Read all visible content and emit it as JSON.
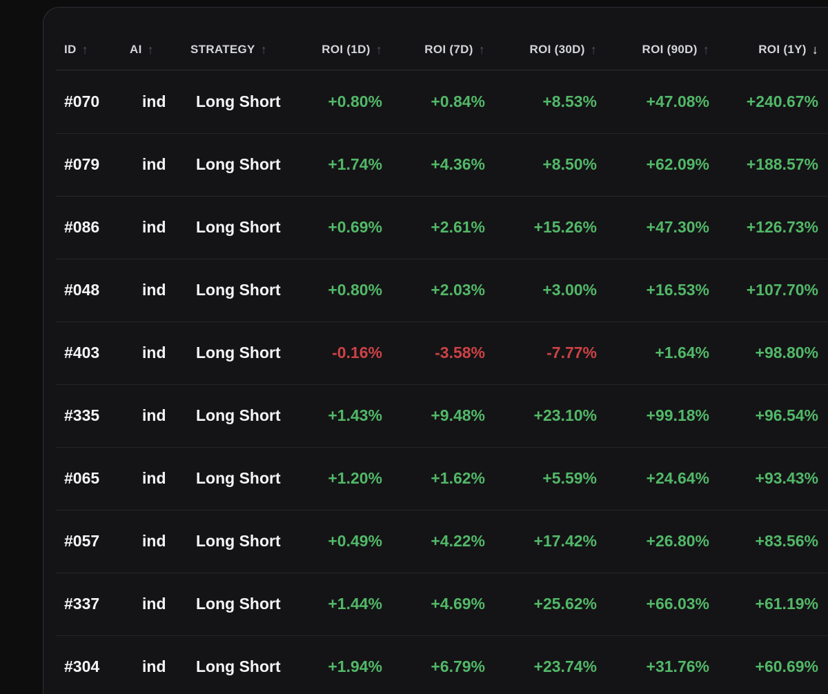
{
  "icons": {
    "sort_asc": "↑",
    "sort_desc": "↓"
  },
  "colors": {
    "page_bg": "#0d0d0e",
    "card_bg": "#141416",
    "positive": "#52b868",
    "negative": "#cd4245"
  },
  "table": {
    "columns": [
      {
        "key": "id",
        "label": "ID",
        "sort": "asc-inactive",
        "align": "left"
      },
      {
        "key": "ai",
        "label": "AI",
        "sort": "asc-inactive",
        "align": "left"
      },
      {
        "key": "strategy",
        "label": "STRATEGY",
        "sort": "asc-inactive",
        "align": "left"
      },
      {
        "key": "roi_1d",
        "label": "ROI (1D)",
        "sort": "asc-inactive",
        "align": "right"
      },
      {
        "key": "roi_7d",
        "label": "ROI (7D)",
        "sort": "asc-inactive",
        "align": "right"
      },
      {
        "key": "roi_30d",
        "label": "ROI (30D)",
        "sort": "asc-inactive",
        "align": "right"
      },
      {
        "key": "roi_90d",
        "label": "ROI (90D)",
        "sort": "asc-inactive",
        "align": "right"
      },
      {
        "key": "roi_1y",
        "label": "ROI (1Y)",
        "sort": "desc-active",
        "align": "right"
      }
    ],
    "rows": [
      {
        "id": "#070",
        "ai": "ind",
        "strategy": "Long Short",
        "roi_1d": "+0.80%",
        "roi_7d": "+0.84%",
        "roi_30d": "+8.53%",
        "roi_90d": "+47.08%",
        "roi_1y": "+240.67%"
      },
      {
        "id": "#079",
        "ai": "ind",
        "strategy": "Long Short",
        "roi_1d": "+1.74%",
        "roi_7d": "+4.36%",
        "roi_30d": "+8.50%",
        "roi_90d": "+62.09%",
        "roi_1y": "+188.57%"
      },
      {
        "id": "#086",
        "ai": "ind",
        "strategy": "Long Short",
        "roi_1d": "+0.69%",
        "roi_7d": "+2.61%",
        "roi_30d": "+15.26%",
        "roi_90d": "+47.30%",
        "roi_1y": "+126.73%"
      },
      {
        "id": "#048",
        "ai": "ind",
        "strategy": "Long Short",
        "roi_1d": "+0.80%",
        "roi_7d": "+2.03%",
        "roi_30d": "+3.00%",
        "roi_90d": "+16.53%",
        "roi_1y": "+107.70%"
      },
      {
        "id": "#403",
        "ai": "ind",
        "strategy": "Long Short",
        "roi_1d": "-0.16%",
        "roi_7d": "-3.58%",
        "roi_30d": "-7.77%",
        "roi_90d": "+1.64%",
        "roi_1y": "+98.80%"
      },
      {
        "id": "#335",
        "ai": "ind",
        "strategy": "Long Short",
        "roi_1d": "+1.43%",
        "roi_7d": "+9.48%",
        "roi_30d": "+23.10%",
        "roi_90d": "+99.18%",
        "roi_1y": "+96.54%"
      },
      {
        "id": "#065",
        "ai": "ind",
        "strategy": "Long Short",
        "roi_1d": "+1.20%",
        "roi_7d": "+1.62%",
        "roi_30d": "+5.59%",
        "roi_90d": "+24.64%",
        "roi_1y": "+93.43%"
      },
      {
        "id": "#057",
        "ai": "ind",
        "strategy": "Long Short",
        "roi_1d": "+0.49%",
        "roi_7d": "+4.22%",
        "roi_30d": "+17.42%",
        "roi_90d": "+26.80%",
        "roi_1y": "+83.56%"
      },
      {
        "id": "#337",
        "ai": "ind",
        "strategy": "Long Short",
        "roi_1d": "+1.44%",
        "roi_7d": "+4.69%",
        "roi_30d": "+25.62%",
        "roi_90d": "+66.03%",
        "roi_1y": "+61.19%"
      },
      {
        "id": "#304",
        "ai": "ind",
        "strategy": "Long Short",
        "roi_1d": "+1.94%",
        "roi_7d": "+6.79%",
        "roi_30d": "+23.74%",
        "roi_90d": "+31.76%",
        "roi_1y": "+60.69%"
      }
    ]
  }
}
